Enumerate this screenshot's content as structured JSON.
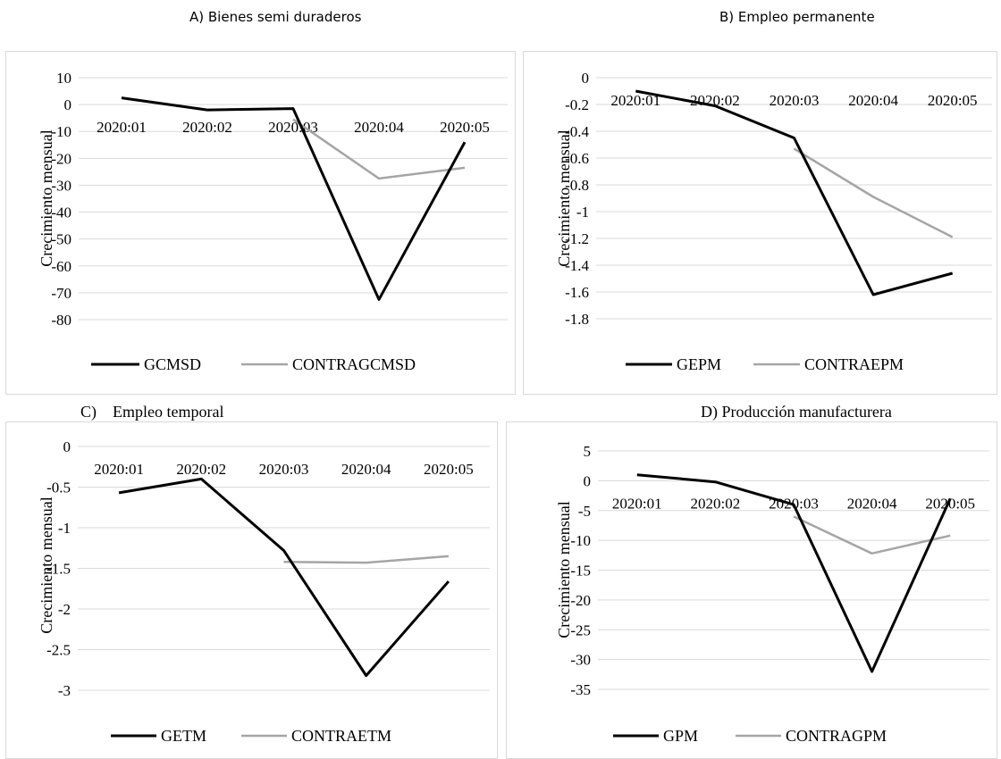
{
  "chart_data": [
    {
      "type": "line",
      "title": "A) Bienes semi duraderos",
      "ylabel": "Crecimiento mensual",
      "xlabel": "",
      "ylim": [
        -80,
        10
      ],
      "yticks": [
        10,
        0,
        -10,
        -20,
        -30,
        -40,
        -50,
        -60,
        -70,
        -80
      ],
      "ytick_labels": [
        "10",
        "0",
        "-10",
        "-20",
        "-30",
        "-40",
        "-50",
        "-60",
        "-70",
        "-80"
      ],
      "grid": true,
      "legend_position": "bottom",
      "categories": [
        "2020:01",
        "2020:02",
        "2020:03",
        "2020:04",
        "2020:05"
      ],
      "series": [
        {
          "name": "GCMSD",
          "color": "#000000",
          "values": [
            2.5,
            -2.0,
            -1.5,
            -72.5,
            -14.0
          ]
        },
        {
          "name": "CONTRAGCMSD",
          "color": "#a5a5a5",
          "values": [
            null,
            null,
            -5.5,
            -27.5,
            -23.5
          ]
        }
      ]
    },
    {
      "type": "line",
      "title": "B) Empleo permanente",
      "ylabel": "Crecimiento mensual",
      "xlabel": "",
      "ylim": [
        -1.8,
        0
      ],
      "yticks": [
        0,
        -0.2,
        -0.4,
        -0.6,
        -0.8,
        -1,
        -1.2,
        -1.4,
        -1.6,
        -1.8
      ],
      "ytick_labels": [
        "0",
        "-0.2",
        "-0.4",
        "-0.6",
        "-0.8",
        "-1",
        "-1.2",
        "-1.4",
        "-1.6",
        "-1.8"
      ],
      "grid": true,
      "legend_position": "bottom",
      "categories": [
        "2020:01",
        "2020:02",
        "2020:03",
        "2020:04",
        "2020:05"
      ],
      "series": [
        {
          "name": "GEPM",
          "color": "#000000",
          "values": [
            -0.1,
            -0.21,
            -0.45,
            -1.62,
            -1.46
          ]
        },
        {
          "name": "CONTRAEPM",
          "color": "#a5a5a5",
          "values": [
            null,
            null,
            -0.53,
            -0.89,
            -1.19
          ]
        }
      ]
    },
    {
      "type": "line",
      "title": "C)    Empleo temporal",
      "ylabel": "Crecimiento mensual",
      "xlabel": "",
      "ylim": [
        -3,
        0
      ],
      "yticks": [
        0,
        -0.5,
        -1,
        -1.5,
        -2,
        -2.5,
        -3
      ],
      "ytick_labels": [
        "0",
        "-0.5",
        "-1",
        "-1.5",
        "-2",
        "-2.5",
        "-3"
      ],
      "grid": true,
      "legend_position": "bottom",
      "categories": [
        "2020:01",
        "2020:02",
        "2020:03",
        "2020:04",
        "2020:05"
      ],
      "series": [
        {
          "name": "GETM",
          "color": "#000000",
          "values": [
            -0.57,
            -0.4,
            -1.28,
            -2.82,
            -1.66
          ]
        },
        {
          "name": "CONTRAETM",
          "color": "#a5a5a5",
          "values": [
            null,
            null,
            -1.42,
            -1.43,
            -1.35
          ]
        }
      ]
    },
    {
      "type": "line",
      "title": "D) Producción manufacturera",
      "ylabel": "Crecimiento mensual",
      "xlabel": "",
      "ylim": [
        -35,
        5
      ],
      "yticks": [
        5,
        0,
        -5,
        -10,
        -15,
        -20,
        -25,
        -30,
        -35
      ],
      "ytick_labels": [
        "5",
        "0",
        "-5",
        "-10",
        "-15",
        "-20",
        "-25",
        "-30",
        "-35"
      ],
      "grid": true,
      "legend_position": "bottom",
      "categories": [
        "2020:01",
        "2020:02",
        "2020:03",
        "2020:04",
        "2020:05"
      ],
      "series": [
        {
          "name": "GPM",
          "color": "#000000",
          "values": [
            1.0,
            -0.2,
            -4.0,
            -32.0,
            -3.0
          ]
        },
        {
          "name": "CONTRAGPM",
          "color": "#a5a5a5",
          "values": [
            null,
            null,
            -6.0,
            -12.2,
            -9.2
          ]
        }
      ]
    }
  ]
}
